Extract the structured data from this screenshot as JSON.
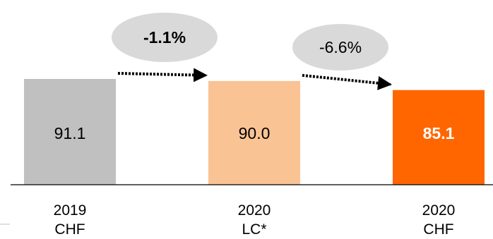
{
  "chart_data": {
    "type": "bar",
    "categories": [
      "2019\nCHF",
      "2020\nLC*",
      "2020\nCHF"
    ],
    "values": [
      91.1,
      90.0,
      85.1
    ],
    "value_labels": [
      "91.1",
      "90.0",
      "85.1"
    ],
    "bar_colors": [
      "#c0c0c0",
      "#f9c394",
      "#ff6600"
    ],
    "value_label_colors": [
      "#000000",
      "#000000",
      "#ffffff"
    ],
    "value_label_bold": [
      false,
      false,
      true
    ],
    "changes": [
      {
        "label": "-1.1%",
        "bold": true,
        "from": 0,
        "to": 1
      },
      {
        "label": "-6.6%",
        "bold": false,
        "from": 1,
        "to": 2
      }
    ],
    "bubble_color": "#d9d9d9",
    "arrow_style": "dotted",
    "title": "",
    "xlabel": "",
    "ylabel": "",
    "grid": false,
    "legend": "none"
  }
}
